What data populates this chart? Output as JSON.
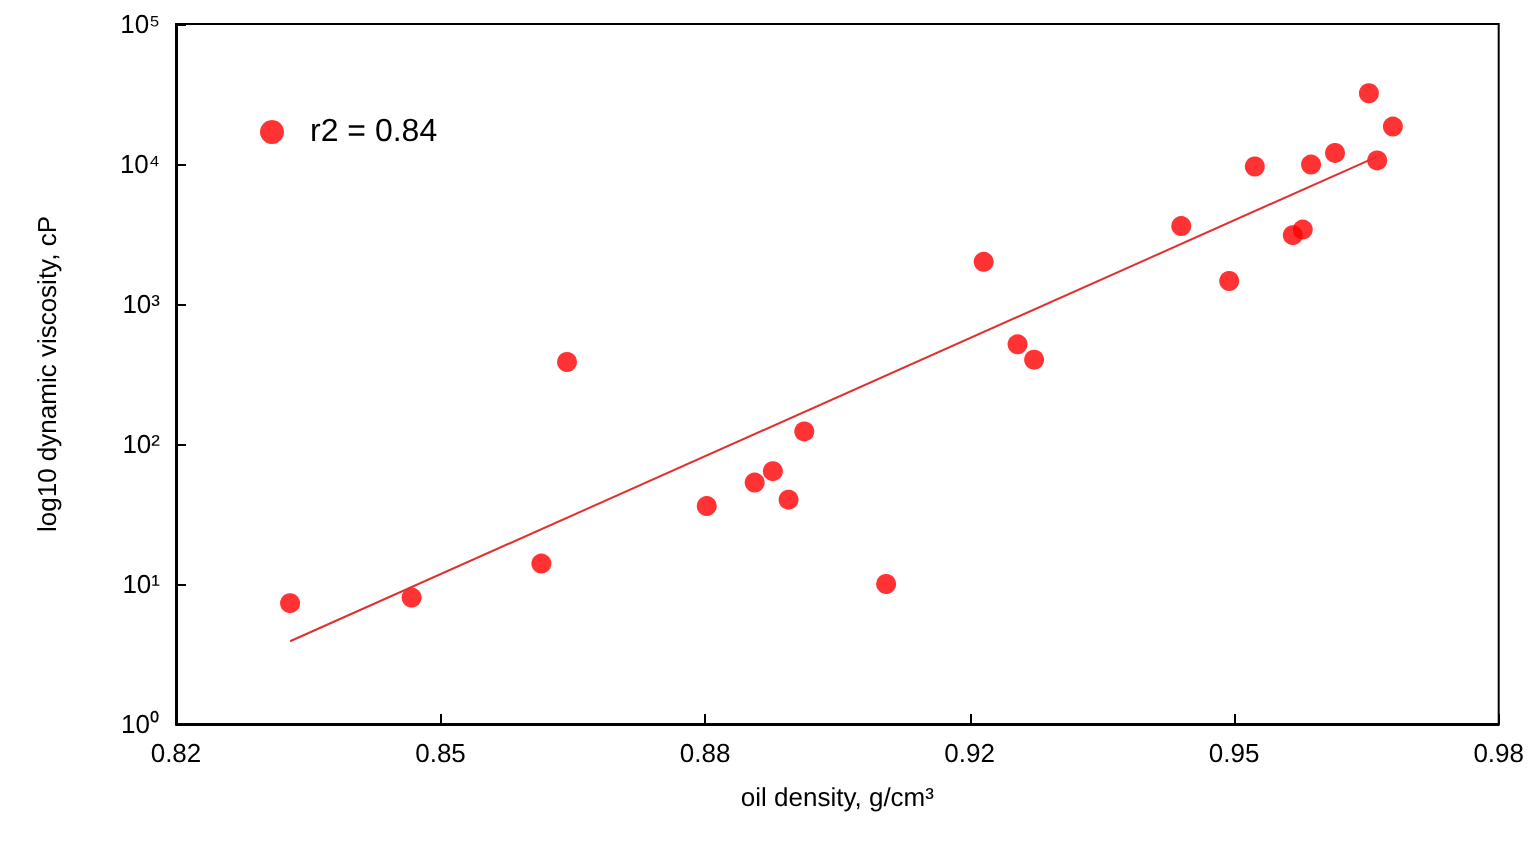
{
  "chart_data": {
    "type": "scatter",
    "xlabel": "oil density, g/cm³",
    "ylabel": "log10 dynamic viscosity, cP",
    "xlim": [
      0.82,
      0.98
    ],
    "xticks": [
      0.82,
      {
        "value": 0.852,
        "label": "0.85"
      },
      {
        "value": 0.884,
        "label": "0.88"
      },
      {
        "value": 0.916,
        "label": "0.92"
      },
      {
        "value": 0.948,
        "label": "0.95"
      },
      0.98
    ],
    "ylim": [
      1,
      100000
    ],
    "yticks": [
      {
        "value": 1,
        "label": "10⁰"
      },
      {
        "value": 10,
        "label": "10¹"
      },
      {
        "value": 100,
        "label": "10²"
      },
      {
        "value": 1000,
        "label": "10³"
      },
      {
        "value": 10000,
        "label": "10⁴"
      },
      {
        "value": 100000,
        "label": "10⁵"
      }
    ],
    "log": "y",
    "grid": false,
    "legend": "top left",
    "marker": "circle",
    "series": [
      {
        "name": "r2 = 0.84",
        "color": "#ff0000",
        "x": [
          0.8338,
          0.8485,
          0.8642,
          0.8673,
          0.8842,
          0.89,
          0.8922,
          0.8941,
          0.896,
          0.9059,
          0.9177,
          0.9218,
          0.9238,
          0.9416,
          0.9474,
          0.9505,
          0.9551,
          0.9563,
          0.9573,
          0.9602,
          0.9643,
          0.9653,
          0.9672
        ],
        "values": [
          7.3,
          8,
          14,
          385,
          36,
          53,
          64,
          40,
          123,
          10,
          2000,
          515,
          400,
          3600,
          1460,
          9600,
          3100,
          3400,
          9900,
          12000,
          32000,
          10600,
          18500
        ]
      },
      {
        "type": "line",
        "color": "#e03030",
        "marker": "none",
        "x": [
          0.8338,
          0.9653
        ],
        "values": [
          3.9,
          11300
        ]
      }
    ]
  }
}
